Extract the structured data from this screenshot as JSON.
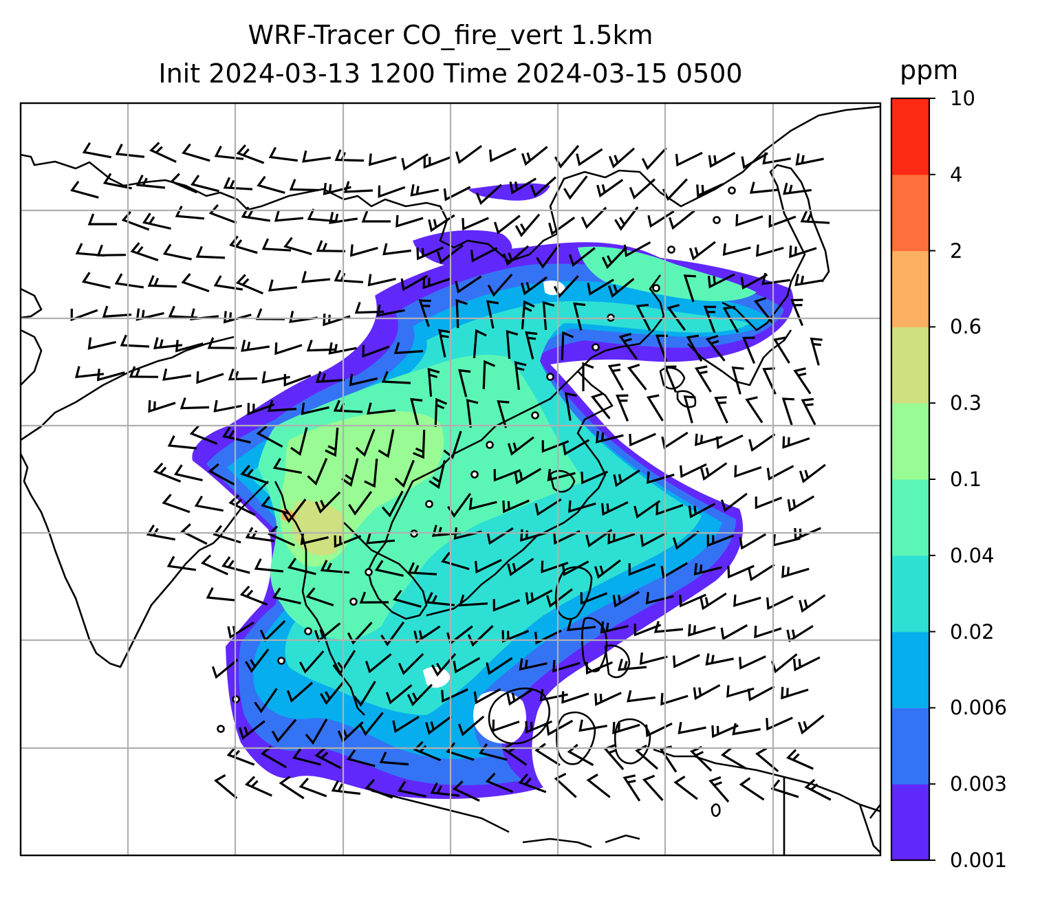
{
  "title_line1": "WRF-Tracer CO_fire_vert 1.5km",
  "title_line2": "Init 2024-03-13 1200 Time 2024-03-15 0500",
  "colorbar": {
    "unit": "ppm",
    "levels": [
      "0.001",
      "0.003",
      "0.006",
      "0.02",
      "0.04",
      "0.1",
      "0.3",
      "0.6",
      "2",
      "4",
      "10"
    ],
    "colors": [
      "#6128fb",
      "#3573f5",
      "#06aeed",
      "#2ee0d4",
      "#5bf6b6",
      "#98fb93",
      "#cfe080",
      "#fdb061",
      "#ff6f3b",
      "#ff2a14"
    ]
  },
  "map": {
    "variable": "CO_fire_vert",
    "level": "1.5km",
    "gridlines": true,
    "overlay": "wind barbs and calm circles",
    "coastline_color": "#000000",
    "gridline_color": "#b0b0b0"
  }
}
